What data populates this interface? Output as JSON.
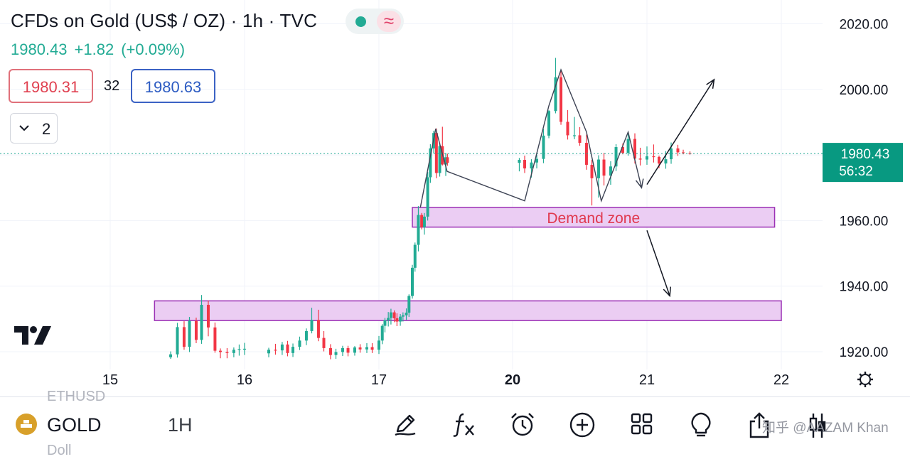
{
  "header": {
    "title": "CFDs on Gold (US$ / OZ) · 1h · TVC",
    "wave_symbol": "≈",
    "last_price": "1980.43",
    "change": "+1.82",
    "change_pct": "(+0.09%)",
    "bid": "1980.31",
    "spread": "32",
    "ask": "1980.63",
    "indicators_count": "2"
  },
  "chart_data": {
    "type": "candlestick",
    "title": "CFDs on Gold (US$ / OZ) · 1h · TVC",
    "y_ticks": [
      1920,
      1940,
      1960,
      1980,
      2000,
      2020
    ],
    "y_tick_labels": [
      "1920.00",
      "1940.00",
      "1960.00",
      "1980.00",
      "2000.00",
      "2020.00"
    ],
    "x_ticks": [
      15,
      16,
      17,
      20,
      21,
      22
    ],
    "x_tick_labels": [
      "15",
      "16",
      "17",
      "20",
      "21",
      "22"
    ],
    "bold_x_tick": "20",
    "last_price_label": "1980.43",
    "countdown_label": "56:32",
    "colors": {
      "up": "#22ab94",
      "down": "#f23645",
      "zone_fill": "#ebcdf3",
      "zone_border": "#9b30b5",
      "annotation_text": "#e0394f"
    },
    "grid": true,
    "candles": [
      [
        15.45,
        1918.3,
        1920.1,
        1917.8,
        1919.2
      ],
      [
        15.5,
        1919.2,
        1928.8,
        1918.2,
        1927.5
      ],
      [
        15.55,
        1927.5,
        1929.3,
        1920.6,
        1921.5
      ],
      [
        15.59,
        1921.5,
        1930.6,
        1919.9,
        1929.4
      ],
      [
        15.64,
        1929.4,
        1930.4,
        1922.6,
        1923.6
      ],
      [
        15.68,
        1923.6,
        1937.3,
        1922.4,
        1934.3
      ],
      [
        15.73,
        1934.3,
        1935.6,
        1924.7,
        1927.4
      ],
      [
        15.78,
        1927.4,
        1928.9,
        1919.7,
        1920.3
      ],
      [
        15.82,
        1920.3,
        1921.0,
        1918.0,
        1919.9
      ],
      [
        15.87,
        1919.9,
        1921.1,
        1918.0,
        1919.6
      ],
      [
        15.92,
        1919.6,
        1921.3,
        1918.3,
        1920.6
      ],
      [
        15.96,
        1920.6,
        1922.2,
        1918.8,
        1920.8
      ],
      [
        16.0,
        1920.8,
        1922.7,
        1919.0,
        1920.9
      ],
      [
        16.18,
        1919.5,
        1921.2,
        1918.3,
        1920.6
      ],
      [
        16.23,
        1920.6,
        1922.4,
        1919.1,
        1920.4
      ],
      [
        16.28,
        1920.4,
        1923.0,
        1919.0,
        1922.2
      ],
      [
        16.32,
        1922.2,
        1923.3,
        1918.6,
        1919.6
      ],
      [
        16.36,
        1919.6,
        1922.5,
        1918.4,
        1921.5
      ],
      [
        16.41,
        1921.5,
        1924.6,
        1920.5,
        1923.4
      ],
      [
        16.46,
        1923.4,
        1927.1,
        1922.0,
        1926.3
      ],
      [
        16.5,
        1926.3,
        1933.4,
        1925.6,
        1929.7
      ],
      [
        16.55,
        1929.7,
        1932.8,
        1923.2,
        1924.2
      ],
      [
        16.59,
        1924.2,
        1926.3,
        1920.1,
        1921.1
      ],
      [
        16.64,
        1921.1,
        1922.3,
        1917.7,
        1919.0
      ],
      [
        16.68,
        1919.0,
        1920.9,
        1917.8,
        1919.9
      ],
      [
        16.73,
        1919.9,
        1921.8,
        1918.7,
        1921.1
      ],
      [
        16.77,
        1921.1,
        1921.8,
        1918.6,
        1919.7
      ],
      [
        16.82,
        1919.7,
        1921.7,
        1918.8,
        1921.3
      ],
      [
        16.86,
        1921.3,
        1922.3,
        1919.7,
        1920.7
      ],
      [
        16.91,
        1920.7,
        1922.6,
        1919.6,
        1921.4
      ],
      [
        16.95,
        1921.4,
        1922.6,
        1919.6,
        1920.6
      ],
      [
        17.0,
        1920.6,
        1924.8,
        1919.3,
        1923.4
      ],
      [
        17.05,
        1923.4,
        1928.4,
        1922.3,
        1927.9
      ],
      [
        17.09,
        1927.9,
        1930.3,
        1925.9,
        1929.6
      ],
      [
        17.14,
        1929.6,
        1932.1,
        1927.7,
        1930.3
      ],
      [
        17.18,
        1930.3,
        1933.1,
        1928.3,
        1932.0
      ],
      [
        17.23,
        1932.0,
        1932.6,
        1929.0,
        1930.2
      ],
      [
        17.27,
        1930.2,
        1931.7,
        1927.8,
        1929.2
      ],
      [
        17.32,
        1929.2,
        1931.5,
        1927.9,
        1930.7
      ],
      [
        17.36,
        1930.7,
        1932.0,
        1929.2,
        1931.1
      ],
      [
        17.41,
        1931.1,
        1933.2,
        1929.7,
        1931.9
      ],
      [
        17.45,
        1931.9,
        1937.5,
        1930.6,
        1937.0
      ],
      [
        17.5,
        1937.0,
        1946.5,
        1936.2,
        1945.6
      ],
      [
        17.54,
        1945.6,
        1953.3,
        1944.4,
        1952.6
      ],
      [
        17.59,
        1952.6,
        1964.4,
        1950.6,
        1961.7
      ],
      [
        17.64,
        1961.7,
        1962.3,
        1957.3,
        1958.0
      ],
      [
        17.68,
        1958.0,
        1962.3,
        1955.7,
        1961.2
      ],
      [
        17.73,
        1961.2,
        1974.8,
        1960.0,
        1973.2
      ],
      [
        17.77,
        1973.2,
        1983.3,
        1971.5,
        1982.0
      ],
      [
        17.82,
        1982.0,
        1987.4,
        1980.5,
        1986.7
      ],
      [
        17.86,
        1986.7,
        1988.1,
        1972.9,
        1974.5
      ],
      [
        17.91,
        1974.5,
        1983.7,
        1973.4,
        1982.7
      ],
      [
        17.95,
        1982.7,
        1988.6,
        1976.8,
        1977.1
      ],
      [
        18.0,
        1977.1,
        1980.6,
        1973.6,
        1979.3
      ],
      [
        18.05,
        1979.3,
        1980.4,
        1976.7,
        1977.6
      ],
      [
        20.05,
        1977.6,
        1979.1,
        1975.0,
        1978.5
      ],
      [
        20.09,
        1978.5,
        1979.8,
        1974.5,
        1975.9
      ],
      [
        20.14,
        1975.9,
        1978.7,
        1973.1,
        1977.7
      ],
      [
        20.18,
        1977.7,
        1980.0,
        1975.9,
        1978.8
      ],
      [
        20.23,
        1978.8,
        1988.0,
        1977.5,
        1985.9
      ],
      [
        20.27,
        1985.9,
        1993.7,
        1985.1,
        1993.4
      ],
      [
        20.32,
        1993.4,
        2009.6,
        1992.7,
        2003.7
      ],
      [
        20.36,
        2003.7,
        2005.8,
        1989.2,
        1990.1
      ],
      [
        20.41,
        1990.1,
        1993.7,
        1984.7,
        1986.0
      ],
      [
        20.46,
        1986.0,
        1991.6,
        1984.8,
        1986.0
      ],
      [
        20.5,
        1986.0,
        1988.5,
        1982.8,
        1983.7
      ],
      [
        20.55,
        1983.7,
        1986.2,
        1975.5,
        1977.0
      ],
      [
        20.59,
        1977.0,
        1978.5,
        1964.6,
        1972.9
      ],
      [
        20.64,
        1972.9,
        1979.9,
        1967.0,
        1978.6
      ],
      [
        20.68,
        1978.6,
        1980.6,
        1970.7,
        1973.7
      ],
      [
        20.73,
        1973.7,
        1978.1,
        1970.9,
        1976.5
      ],
      [
        20.77,
        1976.5,
        1983.3,
        1975.1,
        1982.4
      ],
      [
        20.82,
        1982.4,
        1983.5,
        1980.2,
        1980.6
      ],
      [
        20.86,
        1980.6,
        1986.7,
        1979.8,
        1984.9
      ],
      [
        20.91,
        1984.9,
        1986.6,
        1977.4,
        1978.9
      ],
      [
        20.95,
        1978.9,
        1982.2,
        1976.8,
        1978.6
      ],
      [
        21.0,
        1978.6,
        1982.6,
        1977.0,
        1979.6
      ],
      [
        21.05,
        1979.6,
        1983.2,
        1977.7,
        1979.4
      ],
      [
        21.09,
        1979.4,
        1979.8,
        1976.0,
        1977.4
      ],
      [
        21.14,
        1977.4,
        1981.2,
        1975.8,
        1978.7
      ],
      [
        21.18,
        1978.7,
        1983.8,
        1977.3,
        1982.0
      ],
      [
        21.23,
        1982.0,
        1983.1,
        1979.7,
        1980.8
      ],
      [
        21.27,
        1980.8,
        1981.6,
        1980.2,
        1980.6
      ],
      [
        21.32,
        1980.6,
        1981.1,
        1980.1,
        1980.4
      ]
    ],
    "zones": [
      {
        "x": [
          17.5,
          21.95
        ],
        "y": [
          1958.0,
          1964.0
        ],
        "label": "Demand zone"
      },
      {
        "x": [
          15.33,
          22.13
        ],
        "y": [
          1929.5,
          1935.5
        ],
        "label": ""
      }
    ],
    "zigzag": [
      [
        17.62,
        1964
      ],
      [
        17.85,
        1988
      ],
      [
        18.04,
        1975
      ],
      [
        20.09,
        1966
      ],
      [
        20.27,
        1995
      ],
      [
        20.36,
        2006
      ],
      [
        20.55,
        1987
      ],
      [
        20.66,
        1966
      ],
      [
        20.86,
        1987
      ],
      [
        20.96,
        1970
      ]
    ],
    "arrows": [
      {
        "from": [
          21.0,
          1971
        ],
        "to": [
          21.5,
          2003
        ]
      },
      {
        "from": [
          21.0,
          1957
        ],
        "to": [
          21.17,
          1937
        ]
      }
    ]
  },
  "toolbar": {
    "symbol": "GOLD",
    "interval": "1H",
    "icons": [
      "pen-icon",
      "fx-icon",
      "alarm-icon",
      "plus-circle-icon",
      "grid-icon",
      "lightbulb-icon",
      "share-icon",
      "candles-icon"
    ],
    "watermark": "知乎 @AAZAM Khan",
    "ghost_top": "ETHUSD",
    "ghost_bottom": "Doll"
  }
}
